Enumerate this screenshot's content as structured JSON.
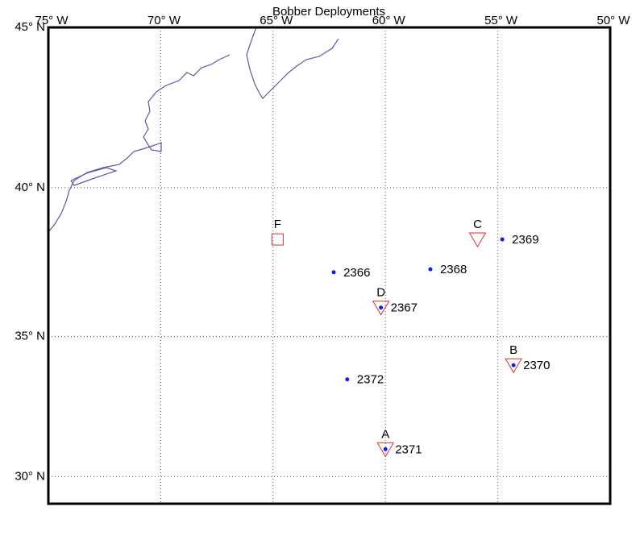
{
  "map": {
    "title": "Bobber Deployments",
    "xlim": [
      -75,
      -50
    ],
    "ylim": [
      29,
      45
    ],
    "xticks": [
      {
        "value": -75,
        "label": "75° W"
      },
      {
        "value": -70,
        "label": "70° W"
      },
      {
        "value": -65,
        "label": "65° W"
      },
      {
        "value": -60,
        "label": "60° W"
      },
      {
        "value": -55,
        "label": "55° W"
      },
      {
        "value": -50,
        "label": "50° W"
      }
    ],
    "yticks": [
      {
        "value": 45,
        "label": "45° N"
      },
      {
        "value": 40,
        "label": "40° N"
      },
      {
        "value": 35,
        "label": "35° N"
      },
      {
        "value": 30,
        "label": "30° N"
      }
    ],
    "grid": true,
    "point_color": "#1a1aee",
    "marker_color": "#e03030",
    "points": [
      {
        "name": "2366",
        "lon": -62.3,
        "lat": 37.2
      },
      {
        "name": "2367",
        "lon": -60.2,
        "lat": 36.0
      },
      {
        "name": "2368",
        "lon": -58.0,
        "lat": 37.3
      },
      {
        "name": "2369",
        "lon": -54.8,
        "lat": 38.3
      },
      {
        "name": "2370",
        "lon": -54.3,
        "lat": 34.0
      },
      {
        "name": "2371",
        "lon": -60.0,
        "lat": 31.0
      },
      {
        "name": "2372",
        "lon": -61.7,
        "lat": 33.5
      }
    ],
    "markers": [
      {
        "name": "F",
        "shape": "square",
        "lon": -64.8,
        "lat": 38.3
      },
      {
        "name": "C",
        "shape": "triangle",
        "lon": -55.9,
        "lat": 38.3
      },
      {
        "name": "D",
        "shape": "triangle",
        "lon": -60.2,
        "lat": 36.0
      },
      {
        "name": "B",
        "shape": "triangle",
        "lon": -54.3,
        "lat": 34.0
      },
      {
        "name": "A",
        "shape": "triangle",
        "lon": -60.0,
        "lat": 31.0
      }
    ]
  }
}
